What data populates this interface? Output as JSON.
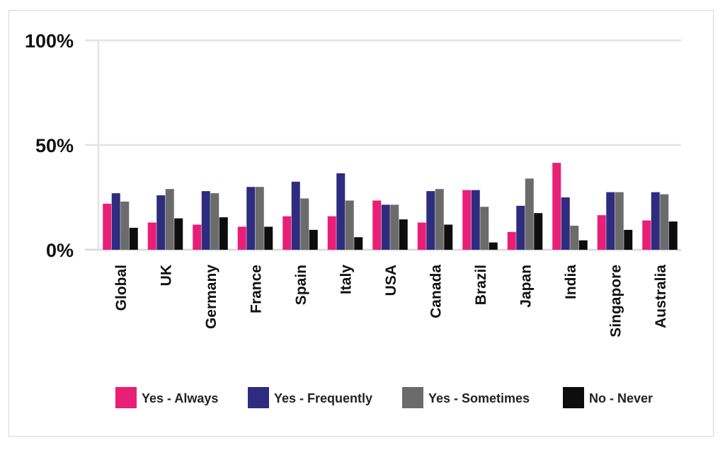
{
  "chart_data": {
    "type": "bar",
    "title": "",
    "xlabel": "",
    "ylabel": "",
    "ylim": [
      0,
      100
    ],
    "yticks": [
      "0%",
      "50%",
      "100%"
    ],
    "ytick_values": [
      0,
      50,
      100
    ],
    "grid": true,
    "legend_position": "bottom",
    "categories": [
      "Global",
      "UK",
      "Germany",
      "France",
      "Spain",
      "Italy",
      "USA",
      "Canada",
      "Brazil",
      "Japan",
      "India",
      "Singapore",
      "Australia"
    ],
    "series": [
      {
        "name": "Yes - Always",
        "color": "#e91e76",
        "values": [
          22,
          13,
          12,
          11,
          16,
          16,
          23.5,
          13,
          28.5,
          8.5,
          41.5,
          16.5,
          14
        ]
      },
      {
        "name": "Yes - Frequently",
        "color": "#2e2c7e",
        "values": [
          27,
          26,
          28,
          30,
          32.5,
          36.5,
          21.5,
          28,
          28.5,
          21,
          25,
          27.5,
          27.5
        ]
      },
      {
        "name": "Yes - Sometimes",
        "color": "#6b6b6b",
        "values": [
          23,
          29,
          27,
          30,
          24.5,
          23.5,
          21.5,
          29,
          20.5,
          34,
          11.5,
          27.5,
          26.5
        ]
      },
      {
        "name": "No - Never",
        "color": "#0d0d0d",
        "values": [
          10.5,
          15,
          15.5,
          11,
          9.5,
          6,
          14.5,
          12,
          3.5,
          17.5,
          4.5,
          9.5,
          13.5
        ]
      }
    ]
  }
}
